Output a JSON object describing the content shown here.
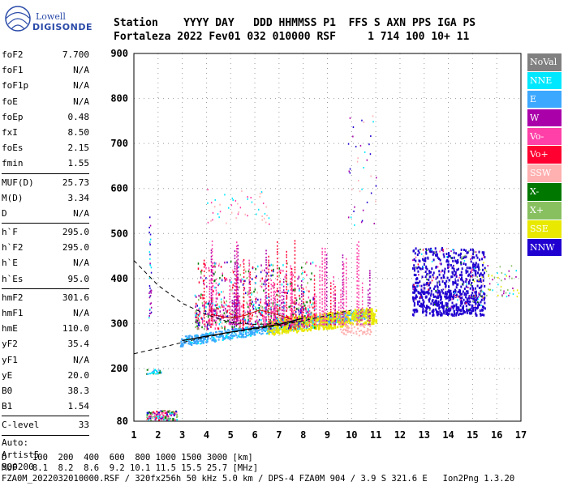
{
  "logo": {
    "line1": "Lowell",
    "line2": "DIGISONDE"
  },
  "header": {
    "line1": "Station    YYYY DAY   DDD HHMMSS P1  FFS S AXN PPS IGA PS",
    "line2": "Fortaleza 2022 Fev01 032 010000 RSF     1 714 100 10+ 11"
  },
  "params": {
    "group1": [
      {
        "k": "foF2",
        "v": "7.700"
      },
      {
        "k": "foF1",
        "v": "N/A"
      },
      {
        "k": "foF1p",
        "v": "N/A"
      },
      {
        "k": "foE",
        "v": "N/A"
      },
      {
        "k": "foEp",
        "v": "0.48"
      },
      {
        "k": "fxI",
        "v": "8.50"
      },
      {
        "k": "foEs",
        "v": "2.15"
      },
      {
        "k": "fmin",
        "v": "1.55"
      }
    ],
    "group2": [
      {
        "k": "MUF(D)",
        "v": "25.73"
      },
      {
        "k": "M(D)",
        "v": "3.34"
      },
      {
        "k": "D",
        "v": "N/A"
      }
    ],
    "group3": [
      {
        "k": "h`F",
        "v": "295.0"
      },
      {
        "k": "h`F2",
        "v": "295.0"
      },
      {
        "k": "h`E",
        "v": "N/A"
      },
      {
        "k": "h`Es",
        "v": "95.0"
      }
    ],
    "group4": [
      {
        "k": "hmF2",
        "v": "301.6"
      },
      {
        "k": "hmF1",
        "v": "N/A"
      },
      {
        "k": "hmE",
        "v": "110.0"
      },
      {
        "k": "yF2",
        "v": "35.4"
      },
      {
        "k": "yF1",
        "v": "N/A"
      },
      {
        "k": "yE",
        "v": "20.0"
      },
      {
        "k": "B0",
        "v": "38.3"
      },
      {
        "k": "B1",
        "v": "1.54"
      }
    ],
    "group5": [
      {
        "k": "C-level",
        "v": "33"
      }
    ],
    "auto": [
      "Auto:",
      "Artist5",
      "500200"
    ]
  },
  "legend": [
    {
      "label": "NoVal",
      "color": "#808080"
    },
    {
      "label": "NNE",
      "color": "#00e8ff"
    },
    {
      "label": "E",
      "color": "#3ca8ff"
    },
    {
      "label": "W",
      "color": "#aa00aa"
    },
    {
      "label": "Vo-",
      "color": "#ff40a8"
    },
    {
      "label": "Vo+",
      "color": "#ff0030"
    },
    {
      "label": "SSW",
      "color": "#ffb0b0"
    },
    {
      "label": "X-",
      "color": "#007800"
    },
    {
      "label": "X+",
      "color": "#88c060"
    },
    {
      "label": "SSE",
      "color": "#e8e800"
    },
    {
      "label": "NNW",
      "color": "#2000d0"
    }
  ],
  "footer": {
    "line1": "D     100  200  400  600  800 1000 1500 3000 [km]",
    "line2": "MUF   8.1  8.2  8.6  9.2 10.1 11.5 15.5 25.7 [MHz]",
    "line3": "FZA0M_2022032010000.RSF / 320fx256h 50 kHz 5.0 km / DPS-4 FZA0M 904 / 3.9 S 321.6 E   Ion2Png 1.3.20"
  },
  "chart_data": {
    "type": "scatter",
    "x_ticks": [
      1,
      2,
      3,
      4,
      5,
      6,
      7,
      8,
      9,
      10,
      11,
      12,
      13,
      14,
      15,
      16,
      17
    ],
    "y_ticks": [
      80,
      200,
      300,
      400,
      500,
      600,
      700,
      800,
      900
    ],
    "xlim": [
      1,
      17
    ],
    "ylim": [
      80,
      900
    ],
    "grid": true
  }
}
